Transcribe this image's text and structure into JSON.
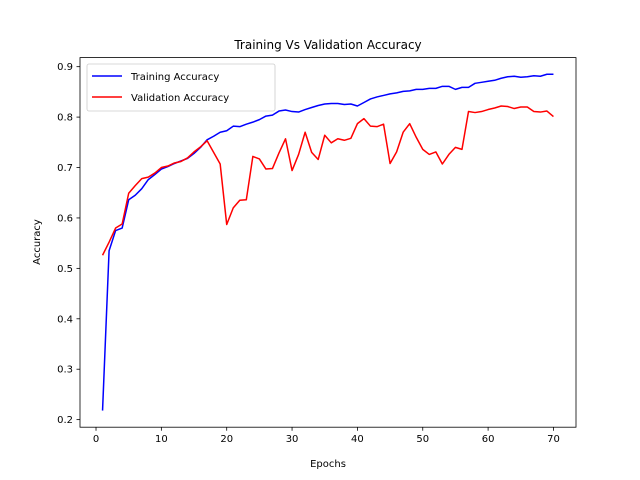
{
  "chart_data": {
    "type": "line",
    "title": "Training Vs Validation Accuracy",
    "xlabel": "Epochs",
    "ylabel": "Accuracy",
    "xlim": [
      -2.45,
      73.45
    ],
    "ylim": [
      0.185,
      0.918
    ],
    "xticks": [
      0,
      10,
      20,
      30,
      40,
      50,
      60,
      70
    ],
    "yticks": [
      0.2,
      0.3,
      0.4,
      0.5,
      0.6,
      0.7,
      0.8,
      0.9
    ],
    "grid": false,
    "legend_position": "top-left",
    "x": [
      1,
      2,
      3,
      4,
      5,
      6,
      7,
      8,
      9,
      10,
      11,
      12,
      13,
      14,
      15,
      16,
      17,
      18,
      19,
      20,
      21,
      22,
      23,
      24,
      25,
      26,
      27,
      28,
      29,
      30,
      31,
      32,
      33,
      34,
      35,
      36,
      37,
      38,
      39,
      40,
      41,
      42,
      43,
      44,
      45,
      46,
      47,
      48,
      49,
      50,
      51,
      52,
      53,
      54,
      55,
      56,
      57,
      58,
      59,
      60,
      61,
      62,
      63,
      64,
      65,
      66,
      67,
      68,
      69,
      70
    ],
    "series": [
      {
        "name": "Training Accuracy",
        "color": "#0000ff",
        "values": [
          0.218,
          0.535,
          0.575,
          0.58,
          0.636,
          0.645,
          0.658,
          0.676,
          0.686,
          0.697,
          0.702,
          0.708,
          0.713,
          0.718,
          0.728,
          0.74,
          0.755,
          0.762,
          0.77,
          0.773,
          0.782,
          0.781,
          0.786,
          0.79,
          0.795,
          0.802,
          0.804,
          0.812,
          0.814,
          0.811,
          0.81,
          0.815,
          0.819,
          0.823,
          0.826,
          0.827,
          0.827,
          0.825,
          0.826,
          0.822,
          0.829,
          0.836,
          0.84,
          0.843,
          0.846,
          0.848,
          0.851,
          0.852,
          0.855,
          0.855,
          0.857,
          0.857,
          0.861,
          0.861,
          0.855,
          0.859,
          0.859,
          0.867,
          0.869,
          0.871,
          0.873,
          0.877,
          0.88,
          0.881,
          0.879,
          0.88,
          0.882,
          0.881,
          0.885,
          0.885
        ]
      },
      {
        "name": "Validation Accuracy",
        "color": "#ff0000",
        "values": [
          0.526,
          0.552,
          0.58,
          0.588,
          0.649,
          0.664,
          0.678,
          0.681,
          0.689,
          0.7,
          0.703,
          0.709,
          0.712,
          0.719,
          0.731,
          0.741,
          0.753,
          0.73,
          0.707,
          0.587,
          0.62,
          0.635,
          0.636,
          0.722,
          0.717,
          0.697,
          0.698,
          0.729,
          0.757,
          0.694,
          0.726,
          0.77,
          0.73,
          0.716,
          0.764,
          0.749,
          0.757,
          0.754,
          0.758,
          0.787,
          0.797,
          0.782,
          0.781,
          0.786,
          0.708,
          0.731,
          0.77,
          0.787,
          0.76,
          0.736,
          0.726,
          0.731,
          0.707,
          0.726,
          0.74,
          0.736,
          0.811,
          0.809,
          0.811,
          0.815,
          0.818,
          0.822,
          0.821,
          0.817,
          0.82,
          0.82,
          0.811,
          0.81,
          0.812,
          0.801
        ]
      }
    ]
  }
}
